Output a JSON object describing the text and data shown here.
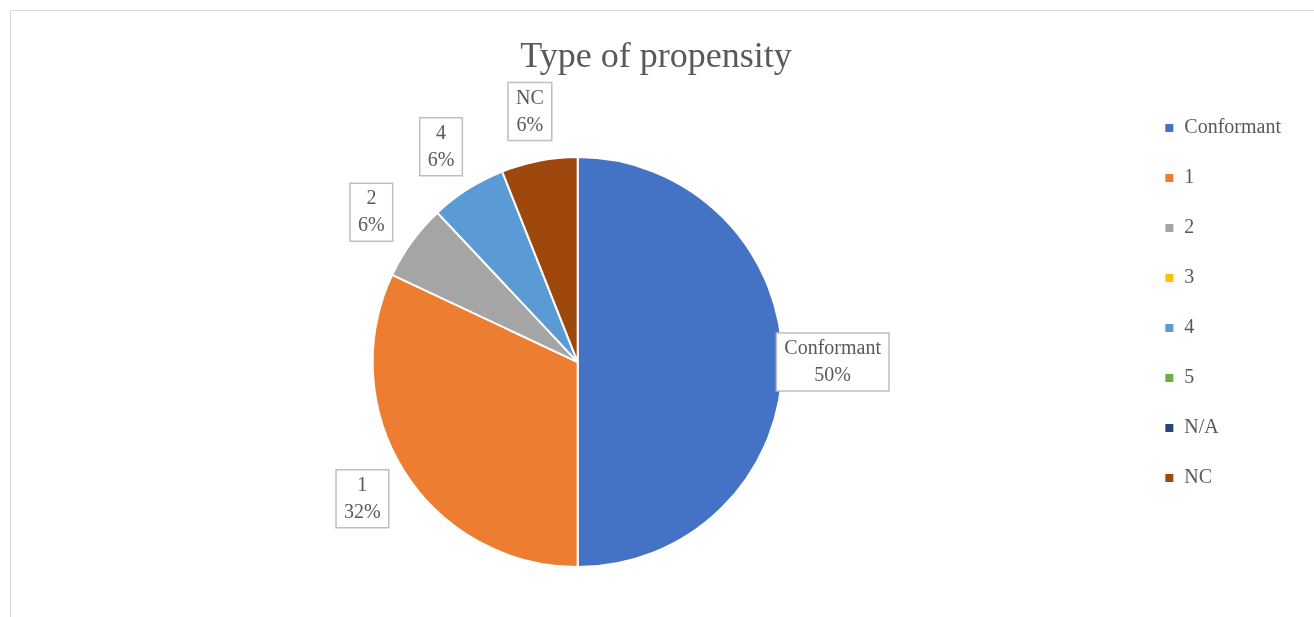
{
  "chart_data": {
    "type": "pie",
    "title": "Type of propensity",
    "categories": [
      "Conformant",
      "1",
      "2",
      "3",
      "4",
      "5",
      "N/A",
      "NC"
    ],
    "values": [
      50,
      32,
      6,
      0,
      6,
      0,
      0,
      6
    ],
    "colors": [
      "#4472c4",
      "#ed7d31",
      "#a5a5a5",
      "#ffc000",
      "#5b9bd5",
      "#70ad47",
      "#264478",
      "#9e480e"
    ],
    "value_labels": [
      "50%",
      "32%",
      "6%",
      null,
      "6%",
      null,
      null,
      "6%"
    ],
    "legend": "right"
  }
}
